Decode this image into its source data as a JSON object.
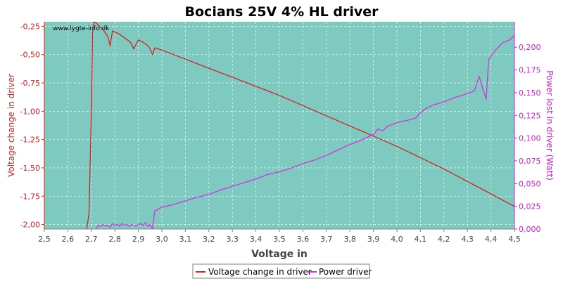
{
  "chart_data": {
    "type": "line",
    "title": "Bocians 25V 4% HL driver",
    "xlabel": "Voltage in",
    "ylabel_left": "Voltage change in driver",
    "ylabel_right": "Power lost in driver (Watt)",
    "watermark": "www.lygte-info.dk",
    "xlim": [
      2.5,
      4.5
    ],
    "ylim_left": [
      -2.04,
      -0.21
    ],
    "ylim_right": [
      0.0,
      0.228
    ],
    "x_ticks": [
      "2,5",
      "2,6",
      "2,7",
      "2,8",
      "2,9",
      "3,0",
      "3,1",
      "3,2",
      "3,3",
      "3,4",
      "3,5",
      "3,6",
      "3,7",
      "3,8",
      "3,9",
      "4,0",
      "4,1",
      "4,2",
      "4,3",
      "4,4",
      "4,5"
    ],
    "y_left_ticks": [
      "-0,25",
      "-0,50",
      "-0,75",
      "-1,00",
      "-1,25",
      "-1,50",
      "-1,75",
      "-2,00"
    ],
    "y_right_ticks": [
      "0,000",
      "0,025",
      "0,050",
      "0,075",
      "0,100",
      "0,125",
      "0,150",
      "0,175",
      "0,200"
    ],
    "grid": true,
    "legend_position": "bottom",
    "colors": {
      "plot_bg": "#7fcac0",
      "voltage_change": "#d42020",
      "power": "#d92ce0",
      "left_axis": "#cc2222",
      "right_axis": "#cc22cc"
    },
    "series": [
      {
        "name": "Voltage change in driver",
        "axis": "left",
        "x": [
          2.68,
          2.69,
          2.7,
          2.705,
          2.71,
          2.72,
          2.73,
          2.74,
          2.75,
          2.76,
          2.77,
          2.78,
          2.79,
          2.8,
          2.82,
          2.84,
          2.86,
          2.87,
          2.88,
          2.9,
          2.92,
          2.94,
          2.95,
          2.96,
          2.97,
          3.0,
          3.1,
          3.2,
          3.3,
          3.4,
          3.5,
          3.6,
          3.7,
          3.8,
          3.9,
          4.0,
          4.1,
          4.2,
          4.3,
          4.4,
          4.5
        ],
        "y": [
          -2.05,
          -1.9,
          -1.0,
          -0.3,
          -0.21,
          -0.22,
          -0.24,
          -0.26,
          -0.28,
          -0.31,
          -0.34,
          -0.42,
          -0.29,
          -0.3,
          -0.32,
          -0.35,
          -0.38,
          -0.4,
          -0.45,
          -0.37,
          -0.39,
          -0.42,
          -0.45,
          -0.5,
          -0.44,
          -0.46,
          -0.54,
          -0.62,
          -0.7,
          -0.78,
          -0.86,
          -0.95,
          -1.04,
          -1.13,
          -1.22,
          -1.31,
          -1.41,
          -1.51,
          -1.62,
          -1.73,
          -1.84
        ]
      },
      {
        "name": "Power driver",
        "axis": "right",
        "x": [
          2.72,
          2.73,
          2.74,
          2.75,
          2.76,
          2.77,
          2.78,
          2.79,
          2.8,
          2.81,
          2.82,
          2.83,
          2.84,
          2.85,
          2.86,
          2.87,
          2.88,
          2.89,
          2.9,
          2.91,
          2.92,
          2.93,
          2.94,
          2.95,
          2.96,
          2.97,
          2.98,
          3.0,
          3.05,
          3.1,
          3.15,
          3.2,
          3.25,
          3.3,
          3.35,
          3.4,
          3.45,
          3.5,
          3.55,
          3.6,
          3.65,
          3.7,
          3.75,
          3.8,
          3.85,
          3.9,
          3.92,
          3.94,
          3.96,
          3.98,
          4.0,
          4.05,
          4.08,
          4.1,
          4.12,
          4.15,
          4.2,
          4.25,
          4.3,
          4.33,
          4.35,
          4.37,
          4.38,
          4.39,
          4.4,
          4.42,
          4.45,
          4.48,
          4.5
        ],
        "y": [
          0.0,
          0.004,
          0.003,
          0.005,
          0.003,
          0.004,
          0.002,
          0.006,
          0.004,
          0.005,
          0.003,
          0.006,
          0.004,
          0.005,
          0.003,
          0.005,
          0.004,
          0.003,
          0.005,
          0.006,
          0.004,
          0.007,
          0.003,
          0.005,
          0.0,
          0.02,
          0.021,
          0.024,
          0.027,
          0.031,
          0.035,
          0.038,
          0.043,
          0.047,
          0.051,
          0.055,
          0.06,
          0.063,
          0.067,
          0.072,
          0.076,
          0.081,
          0.087,
          0.093,
          0.098,
          0.104,
          0.11,
          0.108,
          0.113,
          0.115,
          0.117,
          0.12,
          0.122,
          0.128,
          0.132,
          0.136,
          0.14,
          0.145,
          0.149,
          0.152,
          0.168,
          0.15,
          0.143,
          0.186,
          0.19,
          0.197,
          0.205,
          0.208,
          0.213
        ]
      }
    ]
  }
}
